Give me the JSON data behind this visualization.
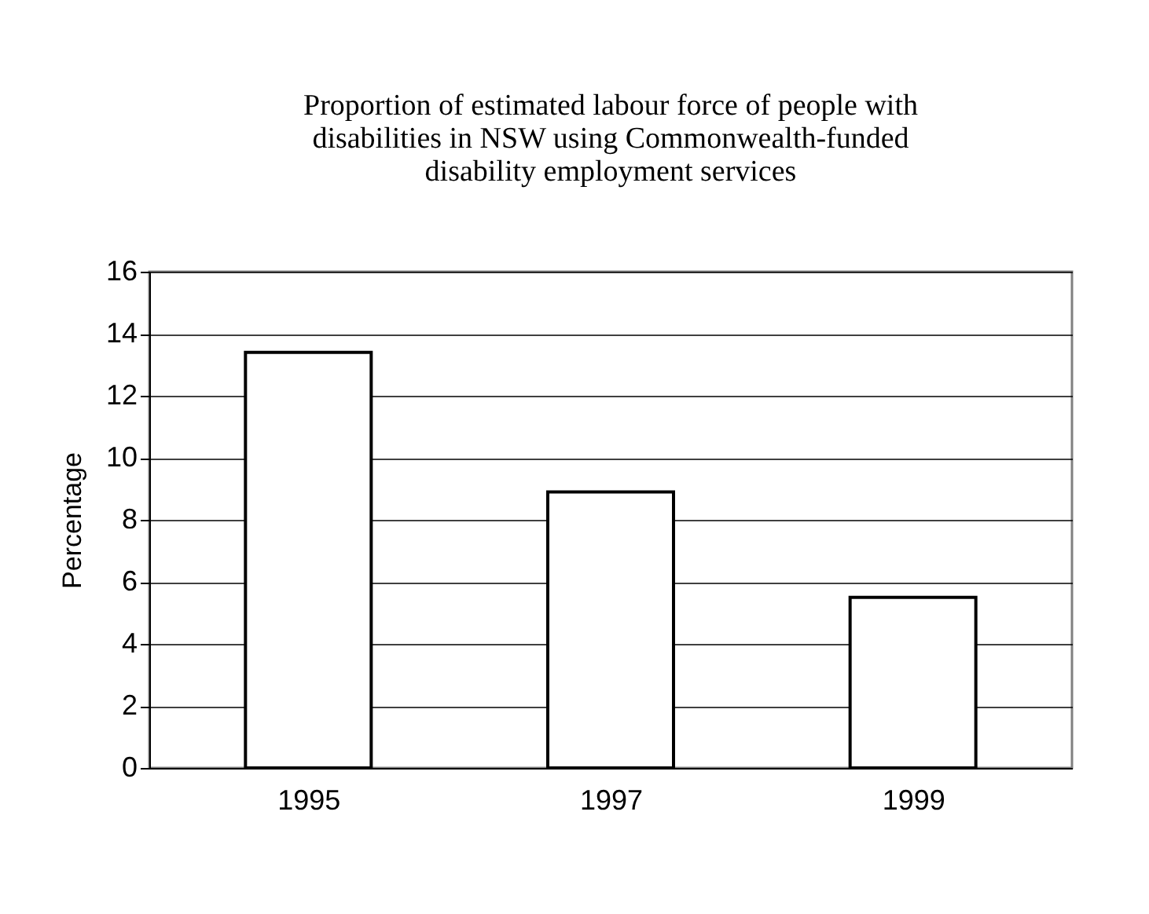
{
  "chart_data": {
    "type": "bar",
    "title": "Proportion of estimated labour force of people with\ndisabilities in NSW using Commonwealth-funded\ndisability employment services",
    "ylabel": "Percentage",
    "categories": [
      "1995",
      "1997",
      "1999"
    ],
    "values": [
      13.4,
      8.9,
      5.5
    ],
    "color": "#ffffff",
    "ylim": [
      0,
      16
    ],
    "yticks": [
      0,
      2,
      4,
      6,
      8,
      10,
      12,
      14,
      16
    ],
    "grid": "y"
  }
}
